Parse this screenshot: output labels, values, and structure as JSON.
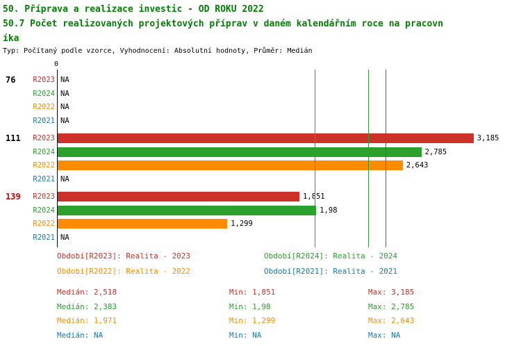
{
  "header": {
    "title_line1": "50. Příprava a realizace investic - OD ROKU 2022",
    "title_line2": "50.7 Počet realizovaných projektových příprav v daném kalendářním roce na pracovn",
    "title_line2_wrap": "íka",
    "subtitle": "Typ: Počítaný podle vzorce, Vyhodnocení: Absolutní hodnoty, Průměr: Medián"
  },
  "colors": {
    "title": "#008000",
    "R2023": "#cc3229",
    "R2024": "#2ca02c",
    "R2022": "#ff8c00",
    "R2021": "#1f77b4",
    "group_label_default": "#000000",
    "group_label_highlight": "#cc0000",
    "axis": "#000000"
  },
  "chart_data": {
    "type": "bar",
    "orientation": "horizontal",
    "xlim": [
      0,
      3.5
    ],
    "axis_zero_label": "0",
    "grid": false,
    "series_order": [
      "R2023",
      "R2024",
      "R2022",
      "R2021"
    ],
    "groups": [
      {
        "label": "76",
        "label_highlight": false,
        "bars": [
          {
            "series": "R2023",
            "value": null,
            "display": "NA"
          },
          {
            "series": "R2024",
            "value": null,
            "display": "NA"
          },
          {
            "series": "R2022",
            "value": null,
            "display": "NA"
          },
          {
            "series": "R2021",
            "value": null,
            "display": "NA"
          }
        ]
      },
      {
        "label": "111",
        "label_highlight": false,
        "bars": [
          {
            "series": "R2023",
            "value": 3.185,
            "display": "3,185"
          },
          {
            "series": "R2024",
            "value": 2.785,
            "display": "2,785"
          },
          {
            "series": "R2022",
            "value": 2.643,
            "display": "2,643"
          },
          {
            "series": "R2021",
            "value": null,
            "display": "NA"
          }
        ]
      },
      {
        "label": "139",
        "label_highlight": true,
        "bars": [
          {
            "series": "R2023",
            "value": 1.851,
            "display": "1,851"
          },
          {
            "series": "R2024",
            "value": 1.98,
            "display": "1,98"
          },
          {
            "series": "R2022",
            "value": 1.299,
            "display": "1,299"
          },
          {
            "series": "R2021",
            "value": null,
            "display": "NA"
          }
        ]
      }
    ],
    "median_lines": [
      {
        "series": "R2022",
        "value": 1.971,
        "color": "#808000"
      },
      {
        "series": "R2024",
        "value": 2.383,
        "color": "#2ca02c"
      },
      {
        "series": "R2023",
        "value": 2.518,
        "color": "#cc3229"
      }
    ]
  },
  "legend": [
    {
      "series": "R2023",
      "label": "Období[R2023]: Realita - 2023"
    },
    {
      "series": "R2024",
      "label": "Období[R2024]: Realita - 2024"
    },
    {
      "series": "R2022",
      "label": "Období[R2022]: Realita - 2022"
    },
    {
      "series": "R2021",
      "label": "Období[R2021]: Realita - 2021"
    }
  ],
  "stats": [
    {
      "series": "R2023",
      "median": "Medián: 2,518",
      "min": "Min: 1,851",
      "max": "Max: 3,185"
    },
    {
      "series": "R2024",
      "median": "Medián: 2,383",
      "min": "Min: 1,98",
      "max": "Max: 2,785"
    },
    {
      "series": "R2022",
      "median": "Medián: 1,971",
      "min": "Min: 1,299",
      "max": "Max: 2,643"
    },
    {
      "series": "R2021",
      "median": "Medián: NA",
      "min": "Min: NA",
      "max": "Max: NA"
    }
  ]
}
